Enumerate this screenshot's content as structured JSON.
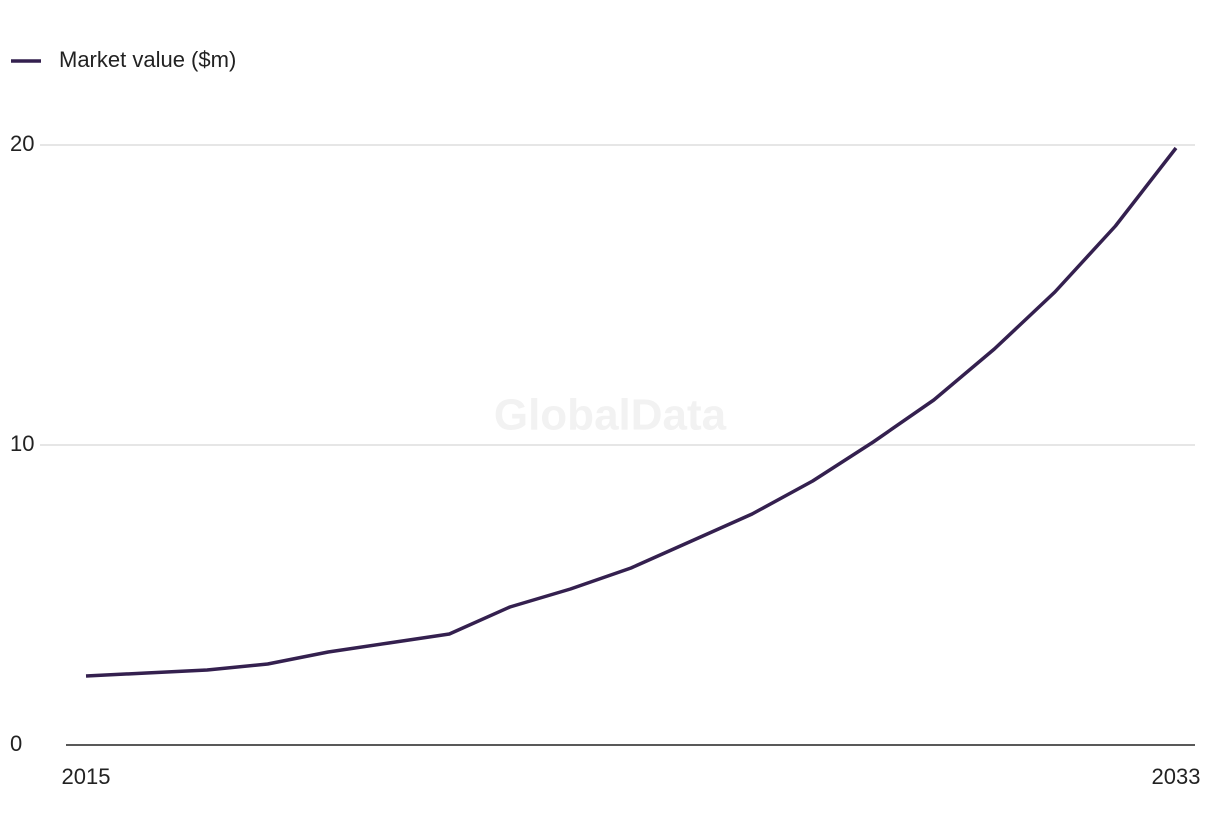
{
  "chart_data": {
    "type": "line",
    "watermark": "GlobalData",
    "x": [
      2015,
      2016,
      2017,
      2018,
      2019,
      2020,
      2021,
      2022,
      2023,
      2024,
      2025,
      2026,
      2027,
      2028,
      2029,
      2030,
      2031,
      2032,
      2033
    ],
    "series": [
      {
        "name": "Market value ($m)",
        "color": "#34204f",
        "values": [
          2.3,
          2.4,
          2.5,
          2.7,
          3.1,
          3.4,
          3.7,
          4.6,
          5.2,
          5.9,
          6.8,
          7.7,
          8.8,
          10.1,
          11.5,
          13.2,
          15.1,
          17.3,
          19.9
        ]
      }
    ],
    "xlim": [
      2015,
      2033
    ],
    "xticks": [
      2015,
      2033
    ],
    "ylim": [
      0,
      20
    ],
    "yticks": [
      0,
      10,
      20
    ],
    "grid": true,
    "legend": "top-left"
  }
}
